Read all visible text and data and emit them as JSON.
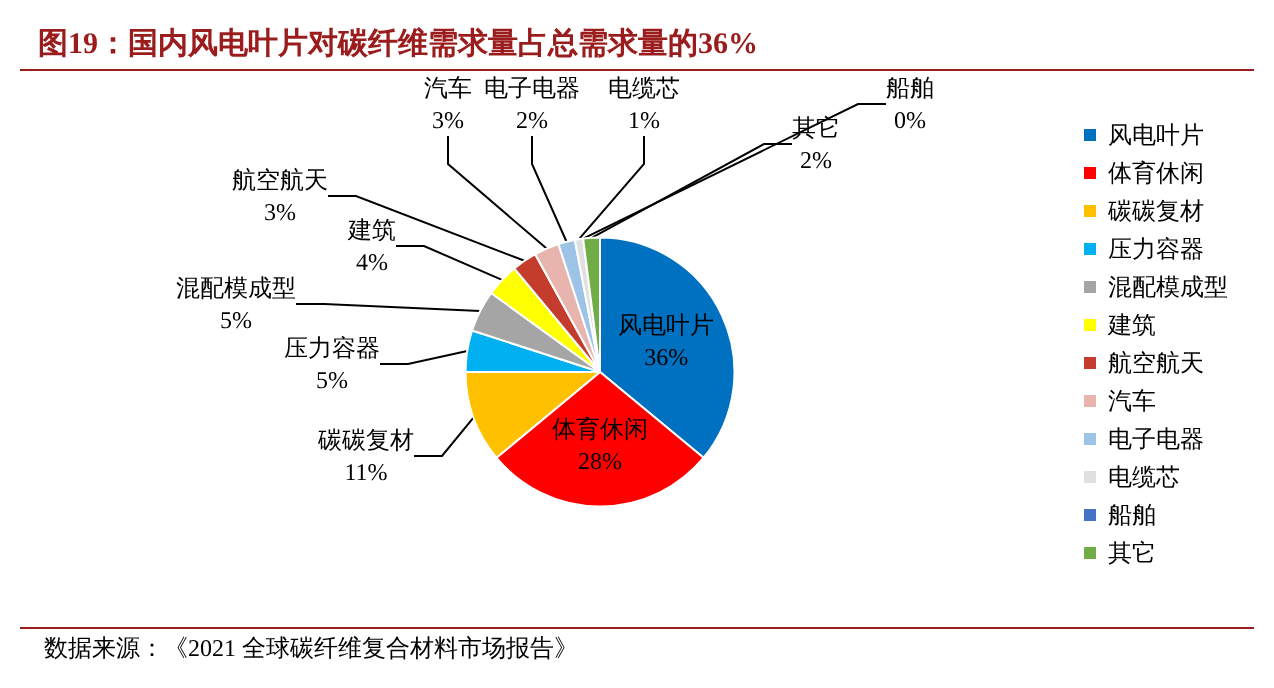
{
  "chart_data": {
    "type": "pie",
    "title": "图19：国内风电叶片对碳纤维需求量占总需求量的36%",
    "annotations": [
      "数据来源：《2021 全球碳纤维复合材料市场报告》"
    ],
    "categories": [
      "风电叶片",
      "体育休闲",
      "碳碳复材",
      "压力容器",
      "混配模成型",
      "建筑",
      "航空航天",
      "汽车",
      "电子电器",
      "电缆芯",
      "船舶",
      "其它"
    ],
    "values": [
      36,
      28,
      11,
      5,
      5,
      4,
      3,
      3,
      2,
      1,
      0,
      2
    ],
    "colors": [
      "#0070c0",
      "#ff0000",
      "#ffc000",
      "#00b0f0",
      "#a5a5a5",
      "#ffff00",
      "#c43c2c",
      "#e8b4ae",
      "#9dc3e6",
      "#e0e0e0",
      "#4472c4",
      "#70ad47"
    ],
    "value_labels": [
      "36%",
      "28%",
      "11%",
      "5%",
      "5%",
      "4%",
      "3%",
      "3%",
      "2%",
      "1%",
      "0%",
      "2%"
    ],
    "legend": "right"
  }
}
